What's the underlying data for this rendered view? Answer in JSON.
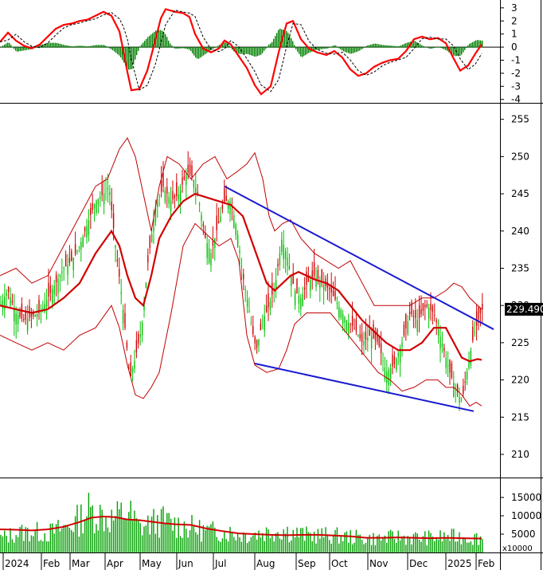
{
  "chart_data": [
    {
      "panel": "oscillator",
      "type": "line",
      "series": [],
      "histogram_color": "#008000",
      "line_color": "#ff0000",
      "signal_color": "#000000",
      "yticks": [
        "3",
        "2",
        "1",
        "0",
        "-1",
        "-2",
        "-3",
        "-4"
      ],
      "ylim": [
        -4.2,
        3.6
      ],
      "points": [
        [
          0,
          0.4
        ],
        [
          10,
          1.1
        ],
        [
          20,
          0.5
        ],
        [
          30,
          0.1
        ],
        [
          40,
          -0.1
        ],
        [
          50,
          0.2
        ],
        [
          60,
          0.8
        ],
        [
          70,
          1.4
        ],
        [
          80,
          1.7
        ],
        [
          90,
          1.8
        ],
        [
          100,
          2.0
        ],
        [
          110,
          2.1
        ],
        [
          120,
          2.4
        ],
        [
          130,
          2.7
        ],
        [
          140,
          2.4
        ],
        [
          150,
          1.2
        ],
        [
          155,
          -0.3
        ],
        [
          160,
          -1.9
        ],
        [
          165,
          -3.3
        ],
        [
          175,
          -3.2
        ],
        [
          185,
          -1.8
        ],
        [
          195,
          0.5
        ],
        [
          202,
          2.2
        ],
        [
          208,
          2.9
        ],
        [
          220,
          2.7
        ],
        [
          230,
          2.6
        ],
        [
          238,
          2.3
        ],
        [
          245,
          1.0
        ],
        [
          255,
          -0.1
        ],
        [
          265,
          -0.4
        ],
        [
          275,
          -0.1
        ],
        [
          282,
          0.5
        ],
        [
          290,
          0.2
        ],
        [
          300,
          -0.7
        ],
        [
          310,
          -1.6
        ],
        [
          320,
          -2.9
        ],
        [
          328,
          -3.6
        ],
        [
          340,
          -3.0
        ],
        [
          350,
          -0.4
        ],
        [
          360,
          1.8
        ],
        [
          368,
          2.0
        ],
        [
          378,
          0.6
        ],
        [
          388,
          -0.1
        ],
        [
          398,
          -0.4
        ],
        [
          410,
          -0.6
        ],
        [
          420,
          -0.3
        ],
        [
          430,
          -0.8
        ],
        [
          440,
          -1.7
        ],
        [
          450,
          -2.2
        ],
        [
          460,
          -2.0
        ],
        [
          470,
          -1.5
        ],
        [
          480,
          -1.2
        ],
        [
          490,
          -1.0
        ],
        [
          500,
          -0.9
        ],
        [
          510,
          -0.3
        ],
        [
          520,
          0.6
        ],
        [
          530,
          0.8
        ],
        [
          540,
          0.6
        ],
        [
          550,
          0.7
        ],
        [
          560,
          0.3
        ],
        [
          570,
          -0.9
        ],
        [
          578,
          -1.8
        ],
        [
          588,
          -1.4
        ],
        [
          597,
          -0.5
        ],
        [
          605,
          0.2
        ]
      ]
    },
    {
      "panel": "price",
      "type": "candlestick",
      "yticks": [
        "255",
        "250",
        "245",
        "240",
        "235",
        "230",
        "225",
        "220",
        "215",
        "210"
      ],
      "ylim": [
        207,
        257
      ],
      "last_value_label": "229.4900",
      "last_value": 229.49,
      "up_color": "#00c000",
      "down_color": "#d00000",
      "ma_color": "#d00000",
      "band_color": "#c00000",
      "trendline_color": "#1a1ad0",
      "upper_trendline": [
        [
          282,
          246.0
        ],
        [
          620,
          226.8
        ]
      ],
      "lower_trendline": [
        [
          320,
          222.2
        ],
        [
          595,
          215.8
        ]
      ],
      "close_path": [
        [
          0,
          230
        ],
        [
          10,
          232
        ],
        [
          20,
          229
        ],
        [
          30,
          228
        ],
        [
          40,
          228.5
        ],
        [
          50,
          229
        ],
        [
          60,
          231
        ],
        [
          70,
          233
        ],
        [
          80,
          235
        ],
        [
          90,
          236
        ],
        [
          100,
          238
        ],
        [
          110,
          241
        ],
        [
          120,
          244
        ],
        [
          130,
          245
        ],
        [
          137,
          246
        ],
        [
          145,
          238
        ],
        [
          152,
          232
        ],
        [
          158,
          226
        ],
        [
          163,
          220
        ],
        [
          170,
          223
        ],
        [
          178,
          227
        ],
        [
          186,
          236
        ],
        [
          195,
          243
        ],
        [
          205,
          246
        ],
        [
          215,
          244
        ],
        [
          225,
          245
        ],
        [
          235,
          248
        ],
        [
          243,
          247
        ],
        [
          250,
          244
        ],
        [
          258,
          239
        ],
        [
          265,
          237
        ],
        [
          272,
          240
        ],
        [
          282,
          244
        ],
        [
          290,
          244
        ],
        [
          298,
          240
        ],
        [
          305,
          234
        ],
        [
          312,
          230
        ],
        [
          318,
          226
        ],
        [
          322,
          224
        ],
        [
          330,
          228
        ],
        [
          338,
          230
        ],
        [
          346,
          233
        ],
        [
          354,
          239
        ],
        [
          362,
          236
        ],
        [
          370,
          232
        ],
        [
          378,
          231
        ],
        [
          386,
          233
        ],
        [
          395,
          234
        ],
        [
          405,
          233
        ],
        [
          415,
          232
        ],
        [
          425,
          230
        ],
        [
          435,
          228
        ],
        [
          445,
          227
        ],
        [
          455,
          225
        ],
        [
          465,
          226
        ],
        [
          475,
          225
        ],
        [
          485,
          221
        ],
        [
          495,
          222
        ],
        [
          505,
          225
        ],
        [
          515,
          229
        ],
        [
          525,
          228
        ],
        [
          535,
          230
        ],
        [
          545,
          229
        ],
        [
          555,
          225
        ],
        [
          565,
          221
        ],
        [
          572,
          219
        ],
        [
          580,
          217
        ],
        [
          588,
          222
        ],
        [
          595,
          226
        ],
        [
          605,
          229.5
        ]
      ],
      "ma_path": [
        [
          0,
          230
        ],
        [
          20,
          229.5
        ],
        [
          40,
          229
        ],
        [
          60,
          229.5
        ],
        [
          80,
          231
        ],
        [
          100,
          233
        ],
        [
          120,
          237
        ],
        [
          140,
          240
        ],
        [
          150,
          238
        ],
        [
          160,
          234
        ],
        [
          170,
          231
        ],
        [
          180,
          230
        ],
        [
          190,
          234
        ],
        [
          200,
          239
        ],
        [
          215,
          242
        ],
        [
          230,
          244
        ],
        [
          245,
          245
        ],
        [
          260,
          244.5
        ],
        [
          275,
          244
        ],
        [
          290,
          243.5
        ],
        [
          305,
          242
        ],
        [
          315,
          239
        ],
        [
          325,
          236
        ],
        [
          335,
          233
        ],
        [
          345,
          232
        ],
        [
          355,
          233
        ],
        [
          365,
          234
        ],
        [
          375,
          234.5
        ],
        [
          385,
          234
        ],
        [
          395,
          233.5
        ],
        [
          410,
          233
        ],
        [
          425,
          232
        ],
        [
          440,
          230
        ],
        [
          455,
          228
        ],
        [
          470,
          226.5
        ],
        [
          485,
          225
        ],
        [
          500,
          224
        ],
        [
          515,
          224
        ],
        [
          530,
          225
        ],
        [
          545,
          227
        ],
        [
          560,
          227
        ],
        [
          570,
          225
        ],
        [
          580,
          223
        ],
        [
          590,
          222.5
        ],
        [
          600,
          222.8
        ],
        [
          605,
          222.7
        ]
      ],
      "upper_band": [
        [
          0,
          234
        ],
        [
          20,
          235
        ],
        [
          40,
          233
        ],
        [
          60,
          234
        ],
        [
          80,
          238
        ],
        [
          100,
          242
        ],
        [
          120,
          246
        ],
        [
          135,
          247
        ],
        [
          150,
          251
        ],
        [
          160,
          252.5
        ],
        [
          170,
          250
        ],
        [
          180,
          245
        ],
        [
          190,
          240
        ],
        [
          200,
          246
        ],
        [
          210,
          250
        ],
        [
          225,
          249
        ],
        [
          240,
          247
        ],
        [
          255,
          249
        ],
        [
          270,
          250
        ],
        [
          285,
          247
        ],
        [
          298,
          248
        ],
        [
          310,
          249
        ],
        [
          320,
          250.5
        ],
        [
          330,
          247
        ],
        [
          338,
          242
        ],
        [
          345,
          240
        ],
        [
          355,
          241
        ],
        [
          365,
          241.5
        ],
        [
          378,
          239
        ],
        [
          395,
          237
        ],
        [
          410,
          236
        ],
        [
          425,
          235
        ],
        [
          440,
          236
        ],
        [
          455,
          233
        ],
        [
          470,
          230
        ],
        [
          485,
          230
        ],
        [
          500,
          230
        ],
        [
          515,
          230
        ],
        [
          530,
          231
        ],
        [
          545,
          231
        ],
        [
          560,
          232
        ],
        [
          570,
          233
        ],
        [
          580,
          232.5
        ],
        [
          590,
          231
        ],
        [
          605,
          229.5
        ]
      ],
      "lower_band": [
        [
          0,
          226
        ],
        [
          20,
          225
        ],
        [
          40,
          224
        ],
        [
          60,
          225
        ],
        [
          80,
          224
        ],
        [
          100,
          226
        ],
        [
          120,
          227
        ],
        [
          140,
          230
        ],
        [
          150,
          227
        ],
        [
          160,
          222
        ],
        [
          170,
          218
        ],
        [
          180,
          217.5
        ],
        [
          190,
          219
        ],
        [
          200,
          221
        ],
        [
          215,
          229
        ],
        [
          230,
          238
        ],
        [
          245,
          241
        ],
        [
          260,
          239.5
        ],
        [
          275,
          238
        ],
        [
          290,
          239
        ],
        [
          300,
          236
        ],
        [
          310,
          226
        ],
        [
          320,
          222
        ],
        [
          335,
          221
        ],
        [
          350,
          221.5
        ],
        [
          360,
          224
        ],
        [
          370,
          227.5
        ],
        [
          385,
          229
        ],
        [
          400,
          229
        ],
        [
          415,
          229
        ],
        [
          430,
          227
        ],
        [
          445,
          225
        ],
        [
          460,
          223
        ],
        [
          475,
          221
        ],
        [
          490,
          220
        ],
        [
          505,
          218.5
        ],
        [
          520,
          219
        ],
        [
          535,
          220
        ],
        [
          550,
          220
        ],
        [
          560,
          219
        ],
        [
          570,
          219
        ],
        [
          580,
          218
        ],
        [
          590,
          216.5
        ],
        [
          598,
          217
        ],
        [
          605,
          216.5
        ]
      ]
    },
    {
      "panel": "volume",
      "type": "bar",
      "bar_color": "#00a000",
      "ma_color": "#d00000",
      "yticks": [
        "15000",
        "10000",
        "5000"
      ],
      "unit_label": "x10000",
      "ylim": [
        0,
        20000
      ],
      "profile": [
        [
          0,
          4000
        ],
        [
          20,
          5500
        ],
        [
          40,
          6000
        ],
        [
          60,
          5500
        ],
        [
          80,
          7000
        ],
        [
          100,
          9500
        ],
        [
          110,
          12000
        ],
        [
          125,
          11000
        ],
        [
          140,
          9500
        ],
        [
          150,
          10500
        ],
        [
          160,
          12000
        ],
        [
          175,
          7000
        ],
        [
          190,
          8500
        ],
        [
          205,
          9000
        ],
        [
          220,
          8000
        ],
        [
          235,
          7500
        ],
        [
          250,
          6500
        ],
        [
          265,
          6000
        ],
        [
          280,
          6000
        ],
        [
          295,
          5500
        ],
        [
          310,
          5000
        ],
        [
          325,
          5500
        ],
        [
          340,
          6000
        ],
        [
          355,
          6500
        ],
        [
          370,
          5500
        ],
        [
          385,
          5000
        ],
        [
          400,
          5000
        ],
        [
          420,
          4800
        ],
        [
          440,
          4500
        ],
        [
          460,
          4000
        ],
        [
          480,
          4000
        ],
        [
          500,
          4500
        ],
        [
          520,
          4200
        ],
        [
          540,
          4200
        ],
        [
          560,
          4500
        ],
        [
          580,
          4500
        ],
        [
          595,
          4200
        ],
        [
          605,
          4300
        ]
      ],
      "ma_path": [
        [
          0,
          6300
        ],
        [
          20,
          6200
        ],
        [
          40,
          6000
        ],
        [
          60,
          6300
        ],
        [
          80,
          7000
        ],
        [
          100,
          8300
        ],
        [
          115,
          9500
        ],
        [
          130,
          9800
        ],
        [
          145,
          9600
        ],
        [
          160,
          9000
        ],
        [
          175,
          8800
        ],
        [
          190,
          8400
        ],
        [
          205,
          8000
        ],
        [
          220,
          7700
        ],
        [
          240,
          7500
        ],
        [
          260,
          6500
        ],
        [
          280,
          5800
        ],
        [
          300,
          5200
        ],
        [
          320,
          5000
        ],
        [
          340,
          4800
        ],
        [
          360,
          4700
        ],
        [
          380,
          4800
        ],
        [
          400,
          4800
        ],
        [
          420,
          4600
        ],
        [
          440,
          4400
        ],
        [
          460,
          4000
        ],
        [
          480,
          4000
        ],
        [
          500,
          4100
        ],
        [
          520,
          4000
        ],
        [
          540,
          3900
        ],
        [
          560,
          4000
        ],
        [
          580,
          3900
        ],
        [
          600,
          3800
        ],
        [
          605,
          3800
        ]
      ]
    }
  ],
  "x_axis": {
    "labels": [
      "2024",
      "Feb",
      "Mar",
      "Apr",
      "May",
      "Jun",
      "Jul",
      "Aug",
      "Sep",
      "Oct",
      "Nov",
      "Dec",
      "2025",
      "Feb"
    ]
  }
}
